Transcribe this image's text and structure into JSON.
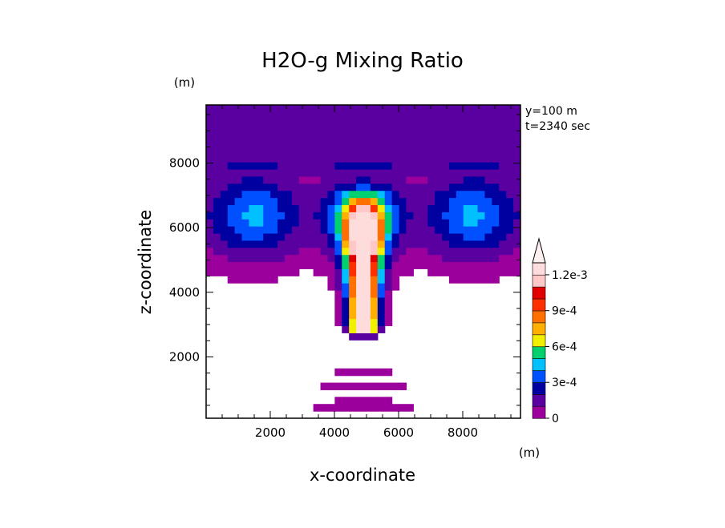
{
  "chart_data": {
    "type": "heatmap",
    "title": "H2O-g Mixing Ratio",
    "xlabel": "x-coordinate",
    "ylabel": "z-coordinate",
    "x_unit": "(m)",
    "y_unit": "(m)",
    "annotations": [
      "y=100 m",
      "t=2340 sec"
    ],
    "xlim": [
      0,
      9800
    ],
    "ylim": [
      100,
      9800
    ],
    "x_ticks": [
      2000,
      4000,
      6000,
      8000
    ],
    "y_ticks": [
      2000,
      4000,
      6000,
      8000
    ],
    "x_tick_labels": [
      "2000",
      "4000",
      "6000",
      "8000"
    ],
    "y_tick_labels": [
      "2000",
      "4000",
      "6000",
      "8000"
    ],
    "colorbar": {
      "levels": [
        0,
        0.0001,
        0.0002,
        0.0003,
        0.0004,
        0.0005,
        0.0006,
        0.0007,
        0.0008,
        0.0009,
        0.001,
        0.0011,
        0.0012
      ],
      "colors": [
        "#9c009c",
        "#5a00a0",
        "#0000a0",
        "#0050ff",
        "#00c0ff",
        "#00d070",
        "#f0f000",
        "#ffb000",
        "#ff7000",
        "#ff3000",
        "#e00000",
        "#ffc8c8",
        "#ffdcdc"
      ],
      "tick_values": [
        0,
        0.0003,
        0.0006,
        0.0009,
        0.0012
      ],
      "tick_labels": [
        "0",
        "3e-4",
        "6e-4",
        "9e-4",
        "1.2e-3"
      ],
      "extend": "max"
    },
    "grid": false
  }
}
